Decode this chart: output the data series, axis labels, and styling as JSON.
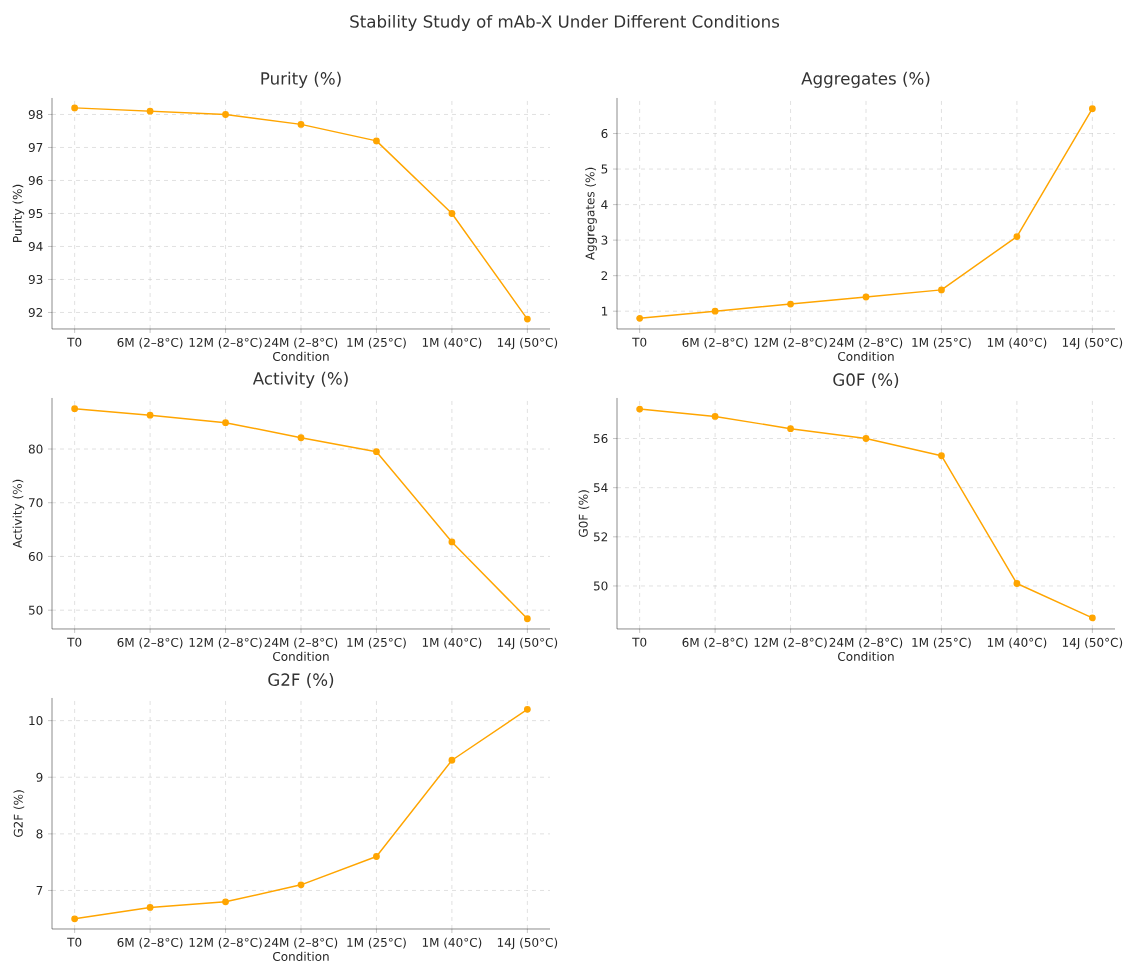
{
  "chart_data": [
    {
      "type": "line",
      "title": "Purity (%)",
      "xlabel": "Condition",
      "ylabel": "Purity (%)",
      "annotations": [
        "Stability Study of mAb-X Under Different Conditions"
      ],
      "categories": [
        "T0",
        "6M (2–8°C)",
        "12M (2–8°C)",
        "24M (2–8°C)",
        "1M (25°C)",
        "1M (40°C)",
        "14J (50°C)"
      ],
      "values": [
        98.2,
        98.1,
        98.0,
        97.7,
        97.2,
        95.0,
        91.8
      ],
      "color": "#ffa500",
      "ylim": [
        91.5,
        98.5
      ],
      "yticks": [
        92,
        93,
        94,
        95,
        96,
        97,
        98
      ],
      "grid": true,
      "marker": "circle",
      "line_style": "solid"
    },
    {
      "type": "line",
      "title": "Aggregates (%)",
      "xlabel": "Condition",
      "ylabel": "Aggregates (%)",
      "categories": [
        "T0",
        "6M (2–8°C)",
        "12M (2–8°C)",
        "24M (2–8°C)",
        "1M (25°C)",
        "1M (40°C)",
        "14J (50°C)"
      ],
      "values": [
        0.8,
        1.0,
        1.2,
        1.4,
        1.6,
        3.1,
        6.7
      ],
      "color": "#ffa500",
      "ylim": [
        0.5,
        7.0
      ],
      "yticks": [
        1,
        2,
        3,
        4,
        5,
        6
      ],
      "grid": true,
      "marker": "circle",
      "line_style": "solid"
    },
    {
      "type": "line",
      "title": "Activity (%)",
      "xlabel": "Condition",
      "ylabel": "Activity (%)",
      "categories": [
        "T0",
        "6M (2–8°C)",
        "12M (2–8°C)",
        "24M (2–8°C)",
        "1M (25°C)",
        "1M (40°C)",
        "14J (50°C)"
      ],
      "values": [
        87.5,
        86.3,
        84.9,
        82.1,
        79.5,
        62.7,
        48.4
      ],
      "color": "#ffa500",
      "ylim": [
        46.5,
        89.5
      ],
      "yticks": [
        50,
        60,
        70,
        80
      ],
      "grid": true,
      "marker": "circle",
      "line_style": "solid"
    },
    {
      "type": "line",
      "title": "G0F (%)",
      "xlabel": "Condition",
      "ylabel": "G0F (%)",
      "categories": [
        "T0",
        "6M (2–8°C)",
        "12M (2–8°C)",
        "24M (2–8°C)",
        "1M (25°C)",
        "1M (40°C)",
        "14J (50°C)"
      ],
      "values": [
        57.2,
        56.9,
        56.4,
        56.0,
        55.3,
        50.1,
        48.7
      ],
      "color": "#ffa500",
      "ylim": [
        48.25,
        57.65
      ],
      "yticks": [
        50,
        52,
        54,
        56
      ],
      "grid": true,
      "marker": "circle",
      "line_style": "solid"
    },
    {
      "type": "line",
      "title": "G2F (%)",
      "xlabel": "Condition",
      "ylabel": "G2F (%)",
      "categories": [
        "T0",
        "6M (2–8°C)",
        "12M (2–8°C)",
        "24M (2–8°C)",
        "1M (25°C)",
        "1M (40°C)",
        "14J (50°C)"
      ],
      "values": [
        6.5,
        6.7,
        6.8,
        7.1,
        7.6,
        9.3,
        10.2
      ],
      "color": "#ffa500",
      "ylim": [
        6.32,
        10.4
      ],
      "yticks": [
        7,
        8,
        9,
        10
      ],
      "grid": true,
      "marker": "circle",
      "line_style": "solid"
    }
  ]
}
